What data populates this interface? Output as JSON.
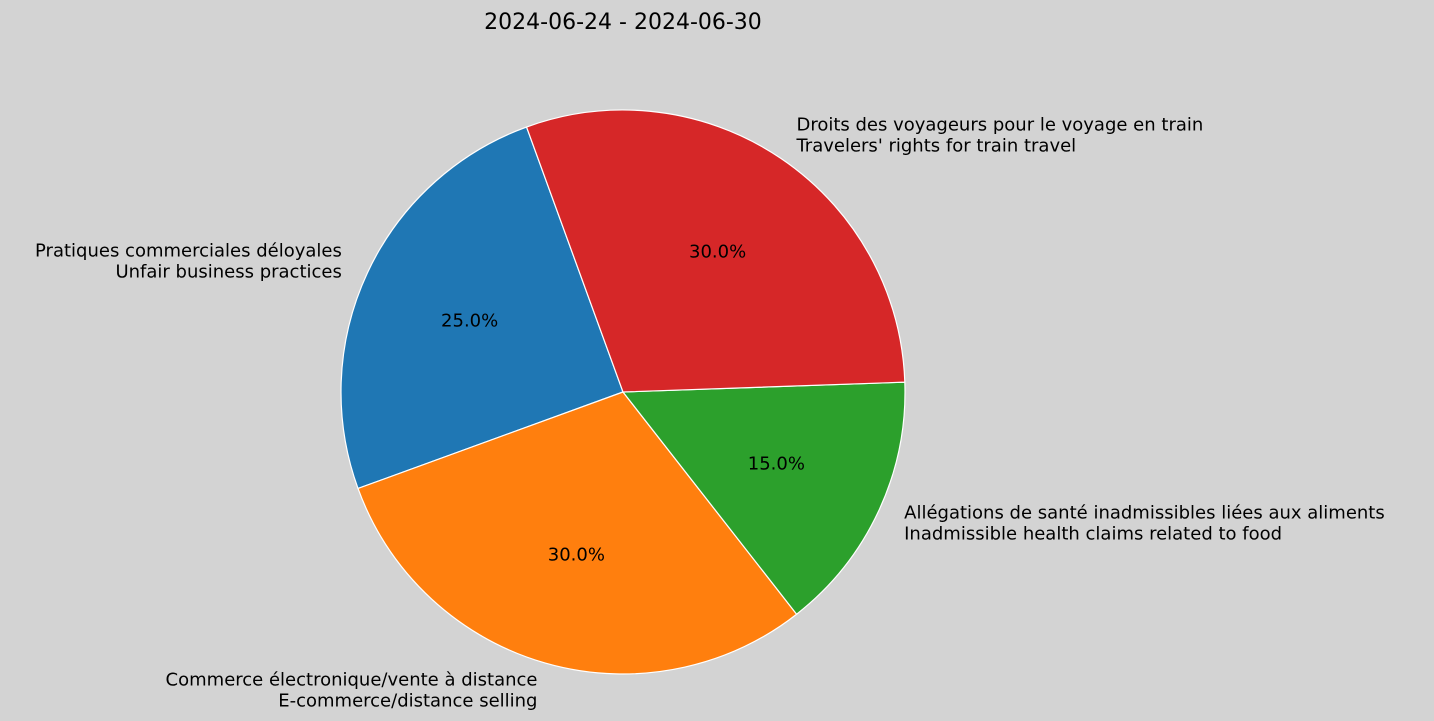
{
  "chart_data": {
    "type": "pie",
    "title": "2024-06-24 - 2024-06-30",
    "start_angle_deg": 110,
    "counterclockwise": true,
    "slices": [
      {
        "label": [
          "Pratiques commerciales déloyales",
          "Unfair business practices"
        ],
        "value": 25.0,
        "pct_label": "25.0%",
        "color": "#1f77b4"
      },
      {
        "label": [
          "Commerce électronique/vente à distance",
          "E-commerce/distance selling"
        ],
        "value": 30.0,
        "pct_label": "30.0%",
        "color": "#ff7f0e"
      },
      {
        "label": [
          "Allégations de santé inadmissibles liées aux aliments",
          "Inadmissible health claims related to food"
        ],
        "value": 15.0,
        "pct_label": "15.0%",
        "color": "#2ca02c"
      },
      {
        "label": [
          "Droits des voyageurs pour le voyage en train",
          "Travelers' rights for train travel"
        ],
        "value": 30.0,
        "pct_label": "30.0%",
        "color": "#d62728"
      }
    ],
    "background": "#d3d3d3",
    "edge_color": "#ffffff"
  }
}
